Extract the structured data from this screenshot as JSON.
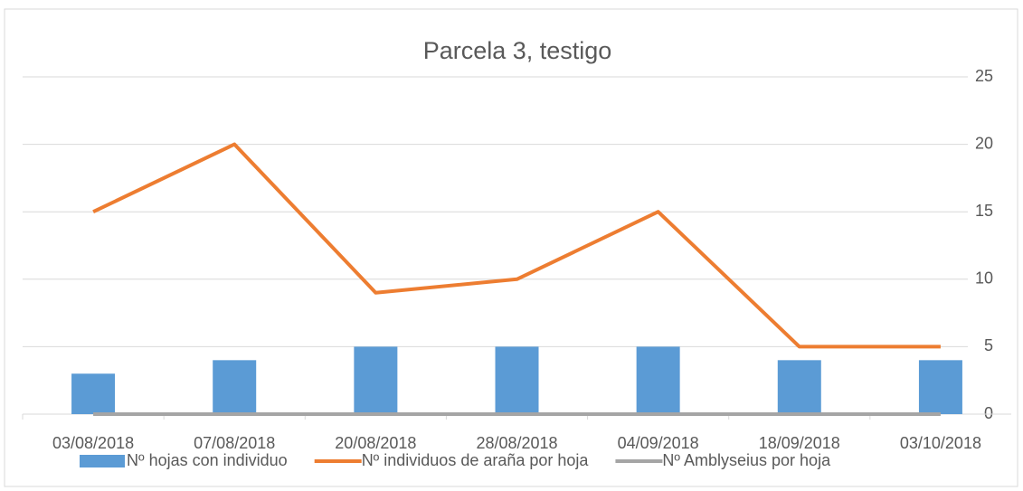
{
  "chart_data": {
    "type": "combo",
    "title": "Parcela 3, testigo",
    "categories": [
      "03/08/2018",
      "07/08/2018",
      "20/08/2018",
      "28/08/2018",
      "04/09/2018",
      "18/09/2018",
      "03/10/2018"
    ],
    "series": [
      {
        "name": "Nº hojas con individuo",
        "type": "bar",
        "color": "#5b9bd5",
        "values": [
          3,
          4,
          5,
          5,
          5,
          4,
          4
        ]
      },
      {
        "name": "Nº individuos de araña por hoja",
        "type": "line",
        "color": "#ed7d31",
        "values": [
          15,
          20,
          9,
          10,
          15,
          5,
          5
        ]
      },
      {
        "name": "Nº Amblyseius por hoja",
        "type": "line",
        "color": "#a5a5a5",
        "values": [
          0,
          0,
          0,
          0,
          0,
          0,
          0
        ]
      }
    ],
    "ylim": [
      0,
      25
    ],
    "yticks": [
      0,
      5,
      10,
      15,
      20,
      25
    ],
    "grid": true,
    "legend": "bottom"
  }
}
